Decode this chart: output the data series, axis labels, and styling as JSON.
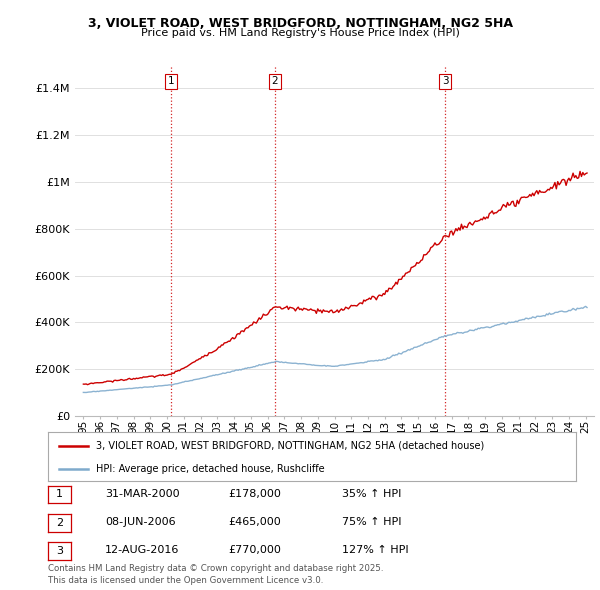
{
  "title_line1": "3, VIOLET ROAD, WEST BRIDGFORD, NOTTINGHAM, NG2 5HA",
  "title_line2": "Price paid vs. HM Land Registry's House Price Index (HPI)",
  "ylim": [
    0,
    1500000
  ],
  "yticks": [
    0,
    200000,
    400000,
    600000,
    800000,
    1000000,
    1200000,
    1400000
  ],
  "ytick_labels": [
    "£0",
    "£200K",
    "£400K",
    "£600K",
    "£800K",
    "£1M",
    "£1.2M",
    "£1.4M"
  ],
  "background_color": "#ffffff",
  "grid_color": "#e0e0e0",
  "sale_dates_num": [
    2000.25,
    2006.44,
    2016.62
  ],
  "sale_prices": [
    178000,
    465000,
    770000
  ],
  "sale_labels": [
    "1",
    "2",
    "3"
  ],
  "vline_color": "#cc0000",
  "legend_label_red": "3, VIOLET ROAD, WEST BRIDGFORD, NOTTINGHAM, NG2 5HA (detached house)",
  "legend_label_blue": "HPI: Average price, detached house, Rushcliffe",
  "table_data": [
    [
      "1",
      "31-MAR-2000",
      "£178,000",
      "35% ↑ HPI"
    ],
    [
      "2",
      "08-JUN-2006",
      "£465,000",
      "75% ↑ HPI"
    ],
    [
      "3",
      "12-AUG-2016",
      "£770,000",
      "127% ↑ HPI"
    ]
  ],
  "footer": "Contains HM Land Registry data © Crown copyright and database right 2025.\nThis data is licensed under the Open Government Licence v3.0.",
  "red_color": "#cc0000",
  "blue_color": "#7faacc"
}
